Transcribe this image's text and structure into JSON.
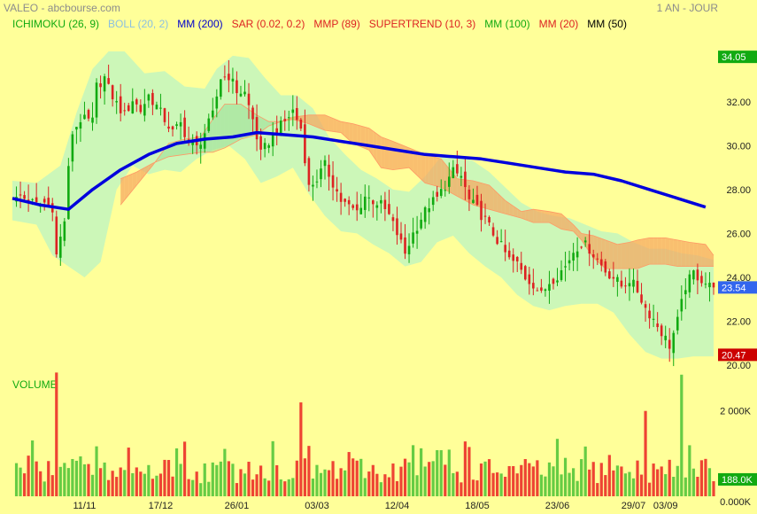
{
  "header": {
    "title": "VALEO - abcbourse.com",
    "period": "1 AN - JOUR"
  },
  "legend": [
    {
      "label": "ICHIMOKU (26, 9)",
      "color": "#11aa11"
    },
    {
      "label": "BOLL (20, 2)",
      "color": "#8cc0e0"
    },
    {
      "label": "MM (200)",
      "color": "#0000cc"
    },
    {
      "label": "SAR (0.02, 0.2)",
      "color": "#dd2222"
    },
    {
      "label": "MMP (89)",
      "color": "#dd2222"
    },
    {
      "label": "SUPERTREND (10, 3)",
      "color": "#dd2222"
    },
    {
      "label": "MM (100)",
      "color": "#11aa11"
    },
    {
      "label": "MM (20)",
      "color": "#dd2222"
    },
    {
      "label": "MM (50)",
      "color": "#000000"
    }
  ],
  "volume_label": "VOLUME",
  "chart_data": {
    "type": "candlestick",
    "title": "VALEO",
    "x_tick_labels": [
      "11/11",
      "17/12",
      "26/01",
      "03/03",
      "12/04",
      "18/05",
      "23/06",
      "29/07",
      "03/09"
    ],
    "price_axis": {
      "ticks": [
        "34.05",
        "32.00",
        "30.00",
        "28.00",
        "26.00",
        "24.00",
        "23.54",
        "22.00",
        "20.47",
        "20.00"
      ],
      "ylim": [
        20,
        34.5
      ]
    },
    "markers": {
      "high": {
        "value": 34.05,
        "label": "34.05",
        "color": "#11aa11"
      },
      "last": {
        "value": 23.54,
        "label": "23.54",
        "color": "#3366ee"
      },
      "low": {
        "value": 20.47,
        "label": "20.47",
        "color": "#cc0000"
      }
    },
    "close_path": [
      [
        0,
        27.4
      ],
      [
        2,
        27.7
      ],
      [
        4,
        27.5
      ],
      [
        6,
        27.3
      ],
      [
        8,
        27.4
      ],
      [
        10,
        27.2
      ],
      [
        11,
        25.0
      ],
      [
        13,
        26.6
      ],
      [
        14,
        28.9
      ],
      [
        15,
        30.6
      ],
      [
        17,
        31.2
      ],
      [
        20,
        31.1
      ],
      [
        21,
        32.7
      ],
      [
        23,
        33.1
      ],
      [
        24,
        32.6
      ],
      [
        26,
        31.9
      ],
      [
        28,
        31.4
      ],
      [
        30,
        32.1
      ],
      [
        32,
        31.6
      ],
      [
        34,
        32.3
      ],
      [
        36,
        31.8
      ],
      [
        38,
        31.2
      ],
      [
        40,
        30.6
      ],
      [
        42,
        31.0
      ],
      [
        44,
        30.2
      ],
      [
        46,
        29.9
      ],
      [
        48,
        30.6
      ],
      [
        50,
        31.4
      ],
      [
        52,
        33.1
      ],
      [
        54,
        33.2
      ],
      [
        56,
        32.5
      ],
      [
        58,
        32.4
      ],
      [
        60,
        31.2
      ],
      [
        62,
        29.6
      ],
      [
        64,
        30.2
      ],
      [
        66,
        30.7
      ],
      [
        68,
        31.1
      ],
      [
        70,
        31.6
      ],
      [
        72,
        30.8
      ],
      [
        74,
        28.1
      ],
      [
        76,
        28.5
      ],
      [
        78,
        29.1
      ],
      [
        80,
        28.3
      ],
      [
        82,
        27.5
      ],
      [
        84,
        27.2
      ],
      [
        86,
        27.0
      ],
      [
        88,
        27.7
      ],
      [
        90,
        27.5
      ],
      [
        92,
        27.3
      ],
      [
        94,
        26.8
      ],
      [
        96,
        26.0
      ],
      [
        98,
        25.1
      ],
      [
        100,
        26.0
      ],
      [
        102,
        26.7
      ],
      [
        104,
        27.3
      ],
      [
        106,
        27.6
      ],
      [
        108,
        28.2
      ],
      [
        110,
        28.8
      ],
      [
        112,
        28.6
      ],
      [
        114,
        27.5
      ],
      [
        116,
        27.1
      ],
      [
        118,
        26.6
      ],
      [
        120,
        26.0
      ],
      [
        122,
        25.4
      ],
      [
        124,
        24.8
      ],
      [
        126,
        24.6
      ],
      [
        128,
        24.0
      ],
      [
        130,
        23.7
      ],
      [
        132,
        23.2
      ],
      [
        134,
        23.8
      ],
      [
        136,
        24.1
      ],
      [
        138,
        24.5
      ],
      [
        140,
        25.2
      ],
      [
        142,
        25.6
      ],
      [
        144,
        25.3
      ],
      [
        146,
        24.8
      ],
      [
        148,
        24.3
      ],
      [
        150,
        24.0
      ],
      [
        152,
        23.6
      ],
      [
        154,
        23.9
      ],
      [
        156,
        23.4
      ],
      [
        158,
        22.6
      ],
      [
        160,
        22.1
      ],
      [
        162,
        21.5
      ],
      [
        164,
        20.9
      ],
      [
        166,
        22.0
      ],
      [
        168,
        23.6
      ],
      [
        170,
        24.2
      ],
      [
        172,
        23.9
      ],
      [
        174,
        23.6
      ],
      [
        175,
        23.54
      ]
    ],
    "mm200": [
      [
        0,
        27.6
      ],
      [
        7,
        27.3
      ],
      [
        14,
        27.1
      ],
      [
        20,
        28.0
      ],
      [
        27,
        28.9
      ],
      [
        34,
        29.6
      ],
      [
        41,
        30.1
      ],
      [
        48,
        30.3
      ],
      [
        55,
        30.4
      ],
      [
        61,
        30.6
      ],
      [
        68,
        30.5
      ],
      [
        75,
        30.4
      ],
      [
        82,
        30.2
      ],
      [
        89,
        30.0
      ],
      [
        96,
        29.8
      ],
      [
        103,
        29.6
      ],
      [
        110,
        29.5
      ],
      [
        117,
        29.4
      ],
      [
        124,
        29.2
      ],
      [
        131,
        29.0
      ],
      [
        138,
        28.8
      ],
      [
        145,
        28.7
      ],
      [
        152,
        28.4
      ],
      [
        159,
        28.0
      ],
      [
        166,
        27.6
      ],
      [
        173,
        27.2
      ]
    ],
    "ichimoku_cloud": {
      "span_a": [
        [
          27,
          27.3
        ],
        [
          31,
          28.2
        ],
        [
          35,
          29.1
        ],
        [
          39,
          30.1
        ],
        [
          43,
          30.3
        ],
        [
          47,
          30.4
        ],
        [
          50,
          31.2
        ],
        [
          53,
          31.9
        ],
        [
          57,
          31.9
        ],
        [
          61,
          31.4
        ],
        [
          64,
          31.1
        ],
        [
          67,
          31.1
        ],
        [
          70,
          31.2
        ],
        [
          74,
          31.0
        ],
        [
          78,
          30.7
        ],
        [
          82,
          30.6
        ],
        [
          85,
          30.1
        ],
        [
          89,
          29.8
        ],
        [
          92,
          29.0
        ],
        [
          95,
          28.9
        ],
        [
          99,
          29.0
        ],
        [
          103,
          28.3
        ],
        [
          107,
          28.1
        ],
        [
          111,
          27.7
        ],
        [
          115,
          27.3
        ],
        [
          119,
          27.1
        ],
        [
          123,
          26.9
        ],
        [
          127,
          26.7
        ],
        [
          130,
          26.5
        ],
        [
          134,
          26.5
        ],
        [
          137,
          26.2
        ],
        [
          140,
          26.1
        ],
        [
          142,
          25.7
        ],
        [
          145,
          24.9
        ],
        [
          148,
          24.4
        ],
        [
          151,
          24.4
        ],
        [
          154,
          24.4
        ],
        [
          156,
          24.4
        ],
        [
          159,
          24.6
        ],
        [
          163,
          24.6
        ],
        [
          166,
          24.5
        ],
        [
          169,
          24.5
        ],
        [
          173,
          24.5
        ],
        [
          175,
          24.5
        ]
      ],
      "span_b": [
        [
          27,
          28.5
        ],
        [
          31,
          28.8
        ],
        [
          35,
          29.2
        ],
        [
          39,
          29.5
        ],
        [
          43,
          29.6
        ],
        [
          47,
          29.7
        ],
        [
          50,
          29.7
        ],
        [
          53,
          29.9
        ],
        [
          57,
          30.3
        ],
        [
          61,
          30.5
        ],
        [
          64,
          30.9
        ],
        [
          67,
          31.1
        ],
        [
          70,
          31.3
        ],
        [
          74,
          31.4
        ],
        [
          78,
          31.4
        ],
        [
          82,
          31.1
        ],
        [
          85,
          31.0
        ],
        [
          89,
          30.8
        ],
        [
          92,
          30.4
        ],
        [
          95,
          30.2
        ],
        [
          99,
          29.9
        ],
        [
          103,
          29.6
        ],
        [
          107,
          29.4
        ],
        [
          111,
          28.5
        ],
        [
          115,
          28.4
        ],
        [
          119,
          28.2
        ],
        [
          123,
          27.5
        ],
        [
          127,
          27.0
        ],
        [
          130,
          27.1
        ],
        [
          134,
          27.0
        ],
        [
          137,
          26.9
        ],
        [
          140,
          26.4
        ],
        [
          142,
          26.0
        ],
        [
          145,
          25.9
        ],
        [
          148,
          25.7
        ],
        [
          151,
          25.5
        ],
        [
          154,
          25.6
        ],
        [
          156,
          25.7
        ],
        [
          159,
          25.8
        ],
        [
          163,
          25.8
        ],
        [
          166,
          25.7
        ],
        [
          169,
          25.6
        ],
        [
          173,
          25.5
        ],
        [
          175,
          25.0
        ]
      ]
    },
    "bollinger": {
      "upper": [
        [
          0,
          28.4
        ],
        [
          6,
          28.3
        ],
        [
          12,
          29.1
        ],
        [
          16,
          31.5
        ],
        [
          20,
          33.5
        ],
        [
          24,
          34.3
        ],
        [
          28,
          34.3
        ],
        [
          33,
          33.3
        ],
        [
          38,
          33.4
        ],
        [
          43,
          32.7
        ],
        [
          48,
          32.6
        ],
        [
          51,
          33.5
        ],
        [
          55,
          34.1
        ],
        [
          59,
          34.0
        ],
        [
          63,
          33.1
        ],
        [
          67,
          32.3
        ],
        [
          71,
          32.3
        ],
        [
          75,
          31.7
        ],
        [
          79,
          30.4
        ],
        [
          83,
          29.6
        ],
        [
          87,
          28.9
        ],
        [
          91,
          28.5
        ],
        [
          95,
          28.0
        ],
        [
          99,
          27.9
        ],
        [
          103,
          28.6
        ],
        [
          107,
          29.5
        ],
        [
          111,
          29.6
        ],
        [
          115,
          29.3
        ],
        [
          119,
          28.8
        ],
        [
          123,
          28.1
        ],
        [
          127,
          27.4
        ],
        [
          131,
          27.0
        ],
        [
          135,
          26.8
        ],
        [
          139,
          26.7
        ],
        [
          143,
          26.4
        ],
        [
          147,
          26.1
        ],
        [
          151,
          26.0
        ],
        [
          155,
          25.6
        ],
        [
          159,
          25.3
        ],
        [
          163,
          25.3
        ],
        [
          167,
          25.1
        ],
        [
          171,
          25.0
        ],
        [
          175,
          24.8
        ]
      ],
      "lower": [
        [
          0,
          26.6
        ],
        [
          6,
          26.4
        ],
        [
          10,
          25.0
        ],
        [
          14,
          24.5
        ],
        [
          18,
          24.0
        ],
        [
          22,
          24.7
        ],
        [
          26,
          28.0
        ],
        [
          30,
          29.1
        ],
        [
          34,
          28.7
        ],
        [
          38,
          28.9
        ],
        [
          42,
          28.8
        ],
        [
          46,
          29.4
        ],
        [
          50,
          29.8
        ],
        [
          54,
          30.0
        ],
        [
          58,
          29.4
        ],
        [
          62,
          28.3
        ],
        [
          66,
          28.6
        ],
        [
          70,
          29.0
        ],
        [
          74,
          27.8
        ],
        [
          78,
          26.8
        ],
        [
          82,
          26.1
        ],
        [
          86,
          26.0
        ],
        [
          90,
          25.5
        ],
        [
          94,
          25.1
        ],
        [
          98,
          24.5
        ],
        [
          102,
          24.7
        ],
        [
          106,
          25.6
        ],
        [
          110,
          25.9
        ],
        [
          114,
          25.1
        ],
        [
          118,
          24.5
        ],
        [
          122,
          24.0
        ],
        [
          126,
          23.2
        ],
        [
          130,
          22.7
        ],
        [
          134,
          22.5
        ],
        [
          138,
          22.7
        ],
        [
          142,
          22.8
        ],
        [
          146,
          22.8
        ],
        [
          150,
          22.4
        ],
        [
          154,
          21.4
        ],
        [
          158,
          20.6
        ],
        [
          162,
          20.3
        ],
        [
          166,
          20.3
        ],
        [
          170,
          20.4
        ],
        [
          175,
          20.4
        ]
      ]
    },
    "volume_axis": {
      "ticks": [
        "2 000K",
        "0.000K"
      ],
      "last_label": "188.0K",
      "max_thousands": 2700
    },
    "volume_spike_positions": [
      11,
      72,
      158,
      167
    ],
    "volume_spike_values": [
      2900,
      2200,
      2000,
      2850
    ]
  }
}
